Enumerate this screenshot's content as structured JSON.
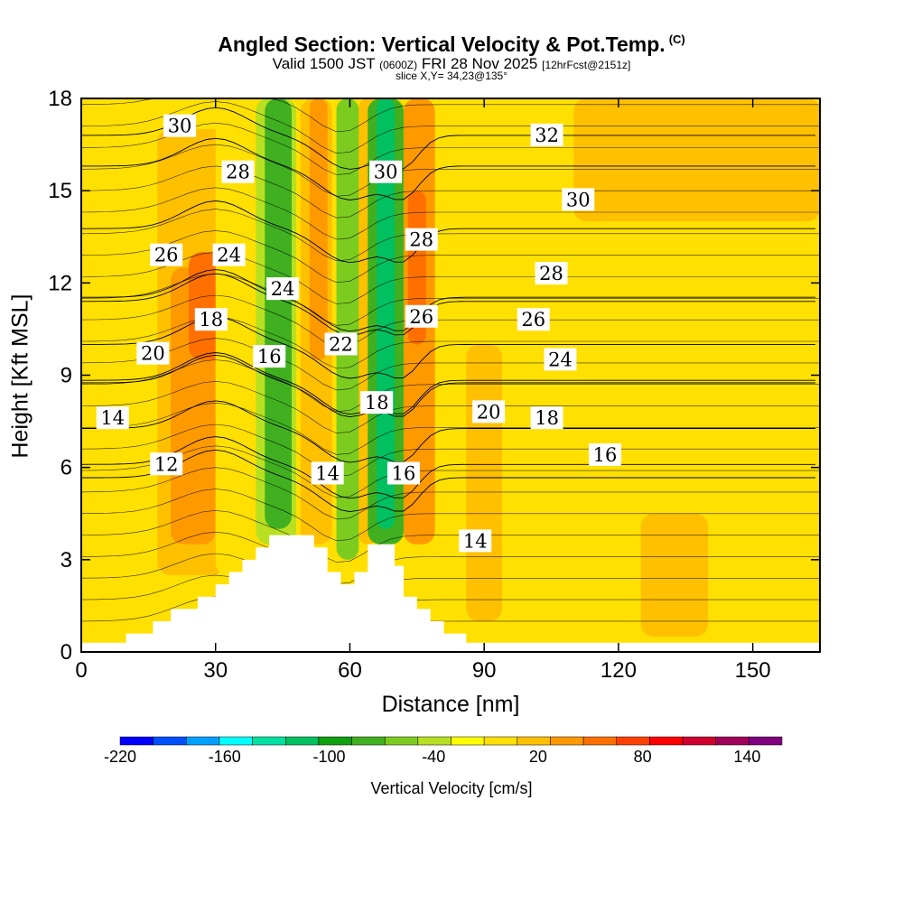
{
  "chart_data": {
    "type": "heatmap",
    "title": "Angled Section: Vertical Velocity & Pot.Temp.",
    "title_suffix": "(C)",
    "subtitle_valid": "Valid 1500 JST",
    "subtitle_z": "(0600Z)",
    "subtitle_date": "FRI 28 Nov 2025",
    "subtitle_fcst": "[12hrFcst@2151z]",
    "slice_label": "slice X,Y= 34,23@135°",
    "xlabel": "Distance [nm]",
    "ylabel": "Height [Kft MSL]",
    "xlim": [
      0,
      165
    ],
    "ylim": [
      0,
      18
    ],
    "xticks": [
      0,
      30,
      60,
      90,
      120,
      150
    ],
    "yticks": [
      0,
      3,
      6,
      9,
      12,
      15,
      18
    ],
    "colorbar": {
      "title": "Vertical Velocity [cm/s]",
      "tick_labels": [
        -220,
        -160,
        -100,
        -40,
        20,
        80,
        140
      ],
      "levels": [
        -220,
        -200,
        -180,
        -160,
        -140,
        -120,
        -100,
        -80,
        -60,
        -40,
        -20,
        0,
        20,
        40,
        60,
        80,
        100,
        120,
        140,
        160
      ],
      "colors": [
        "#0000ff",
        "#0050ff",
        "#00a0ff",
        "#00ffff",
        "#00e0a0",
        "#00c060",
        "#10a010",
        "#40b020",
        "#7ccc20",
        "#b8e020",
        "#ffff00",
        "#ffe000",
        "#ffc000",
        "#ff9900",
        "#ff7000",
        "#ff4000",
        "#ff0000",
        "#d0002e",
        "#a0005a",
        "#800080"
      ]
    },
    "velocity_field": [
      {
        "x": [
          0,
          10
        ],
        "y": [
          0.3,
          18
        ],
        "value": 5
      },
      {
        "x": [
          10,
          22
        ],
        "y": [
          0.5,
          12
        ],
        "value": 5
      },
      {
        "x": [
          17,
          32
        ],
        "y": [
          2.5,
          17
        ],
        "value": 30
      },
      {
        "x": [
          20,
          30
        ],
        "y": [
          3.5,
          12.5
        ],
        "value": 50
      },
      {
        "x": [
          24,
          32
        ],
        "y": [
          9.5,
          13
        ],
        "value": 65
      },
      {
        "x": [
          30,
          42
        ],
        "y": [
          2.5,
          18
        ],
        "value": 15
      },
      {
        "x": [
          39,
          48
        ],
        "y": [
          3.5,
          18
        ],
        "value": -40
      },
      {
        "x": [
          41,
          47
        ],
        "y": [
          4,
          18
        ],
        "value": -70
      },
      {
        "x": [
          49,
          56
        ],
        "y": [
          3.5,
          18
        ],
        "value": 25
      },
      {
        "x": [
          51,
          55
        ],
        "y": [
          9.5,
          18
        ],
        "value": 55
      },
      {
        "x": [
          57,
          62
        ],
        "y": [
          3,
          18
        ],
        "value": -50
      },
      {
        "x": [
          62,
          66
        ],
        "y": [
          3.5,
          18
        ],
        "value": 20
      },
      {
        "x": [
          64,
          72
        ],
        "y": [
          3.5,
          18
        ],
        "value": -80
      },
      {
        "x": [
          66,
          70
        ],
        "y": [
          4,
          18
        ],
        "value": -110
      },
      {
        "x": [
          72,
          79
        ],
        "y": [
          3.5,
          18
        ],
        "value": 40
      },
      {
        "x": [
          73,
          77
        ],
        "y": [
          10,
          15
        ],
        "value": 70
      },
      {
        "x": [
          80,
          96
        ],
        "y": [
          0,
          18
        ],
        "value": 10
      },
      {
        "x": [
          86,
          94
        ],
        "y": [
          1,
          10
        ],
        "value": 25
      },
      {
        "x": [
          96,
          165
        ],
        "y": [
          0,
          18
        ],
        "value": 5
      },
      {
        "x": [
          110,
          165
        ],
        "y": [
          14,
          18
        ],
        "value": 20
      },
      {
        "x": [
          125,
          140
        ],
        "y": [
          0.5,
          4.5
        ],
        "value": 20
      }
    ],
    "theta_contours": [
      {
        "value": 12,
        "label_at": [
          19,
          6.1
        ]
      },
      {
        "value": 14,
        "label_at": [
          7,
          7.6
        ]
      },
      {
        "value": 14,
        "label_at": [
          55,
          5.8
        ]
      },
      {
        "value": 14,
        "label_at": [
          88,
          3.6
        ]
      },
      {
        "value": 16,
        "label_at": [
          42,
          9.6
        ]
      },
      {
        "value": 16,
        "label_at": [
          72,
          5.8
        ]
      },
      {
        "value": 16,
        "label_at": [
          117,
          6.4
        ]
      },
      {
        "value": 18,
        "label_at": [
          29,
          10.8
        ]
      },
      {
        "value": 18,
        "label_at": [
          66,
          8.1
        ]
      },
      {
        "value": 18,
        "label_at": [
          104,
          7.6
        ]
      },
      {
        "value": 20,
        "label_at": [
          16,
          9.7
        ]
      },
      {
        "value": 20,
        "label_at": [
          91,
          7.8
        ]
      },
      {
        "value": 22,
        "label_at": [
          58,
          10.0
        ]
      },
      {
        "value": 24,
        "label_at": [
          33,
          12.9
        ]
      },
      {
        "value": 24,
        "label_at": [
          45,
          11.8
        ]
      },
      {
        "value": 24,
        "label_at": [
          107,
          9.5
        ]
      },
      {
        "value": 26,
        "label_at": [
          19,
          12.9
        ]
      },
      {
        "value": 26,
        "label_at": [
          76,
          10.9
        ]
      },
      {
        "value": 26,
        "label_at": [
          101,
          10.8
        ]
      },
      {
        "value": 28,
        "label_at": [
          35,
          15.6
        ]
      },
      {
        "value": 28,
        "label_at": [
          76,
          13.4
        ]
      },
      {
        "value": 28,
        "label_at": [
          105,
          12.3
        ]
      },
      {
        "value": 30,
        "label_at": [
          22,
          17.1
        ]
      },
      {
        "value": 30,
        "label_at": [
          68,
          15.6
        ]
      },
      {
        "value": 30,
        "label_at": [
          111,
          14.7
        ]
      },
      {
        "value": 32,
        "label_at": [
          104,
          16.8
        ]
      }
    ],
    "terrain": [
      [
        0,
        0.3
      ],
      [
        10,
        0.3
      ],
      [
        10,
        0.6
      ],
      [
        16,
        0.6
      ],
      [
        16,
        1.0
      ],
      [
        20,
        1.0
      ],
      [
        20,
        1.4
      ],
      [
        26,
        1.4
      ],
      [
        26,
        1.8
      ],
      [
        30,
        1.8
      ],
      [
        30,
        2.2
      ],
      [
        33,
        2.2
      ],
      [
        33,
        2.6
      ],
      [
        36,
        2.6
      ],
      [
        36,
        3.0
      ],
      [
        39,
        3.0
      ],
      [
        39,
        3.4
      ],
      [
        42,
        3.4
      ],
      [
        42,
        3.8
      ],
      [
        52,
        3.8
      ],
      [
        52,
        3.4
      ],
      [
        55,
        3.4
      ],
      [
        55,
        2.6
      ],
      [
        58,
        2.6
      ],
      [
        58,
        2.2
      ],
      [
        61,
        2.2
      ],
      [
        61,
        2.6
      ],
      [
        64,
        2.6
      ],
      [
        64,
        3.5
      ],
      [
        70,
        3.5
      ],
      [
        70,
        2.8
      ],
      [
        72,
        2.8
      ],
      [
        72,
        1.8
      ],
      [
        75,
        1.8
      ],
      [
        75,
        1.4
      ],
      [
        78,
        1.4
      ],
      [
        78,
        1.0
      ],
      [
        81,
        1.0
      ],
      [
        81,
        0.6
      ],
      [
        86,
        0.6
      ],
      [
        86,
        0.3
      ],
      [
        165,
        0.3
      ]
    ]
  }
}
